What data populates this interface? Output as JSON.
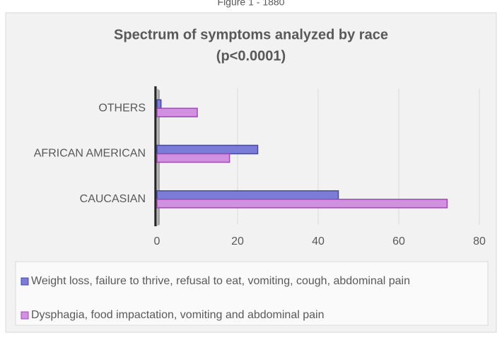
{
  "caption": "Figure 1 - 1880",
  "chart_data": {
    "type": "hbar",
    "title": "Spectrum of symptoms analyzed by race",
    "subtitle": "(p<0.0001)",
    "categories": [
      "CAUCASIAN",
      "AFRICAN AMERICAN",
      "OTHERS"
    ],
    "series": [
      {
        "name": "Weight loss, failure to thrive, refusal to eat, vomiting, cough, abdominal pain",
        "color": "#7b7bd8",
        "values": [
          45,
          25,
          1
        ]
      },
      {
        "name": "Dysphagia, food impactation, vomiting and abdominal pain",
        "color": "#d190e0",
        "values": [
          72,
          18,
          10
        ]
      }
    ],
    "xlim": [
      0,
      80
    ],
    "xticks": [
      0,
      20,
      40,
      60,
      80
    ],
    "grid": true
  }
}
